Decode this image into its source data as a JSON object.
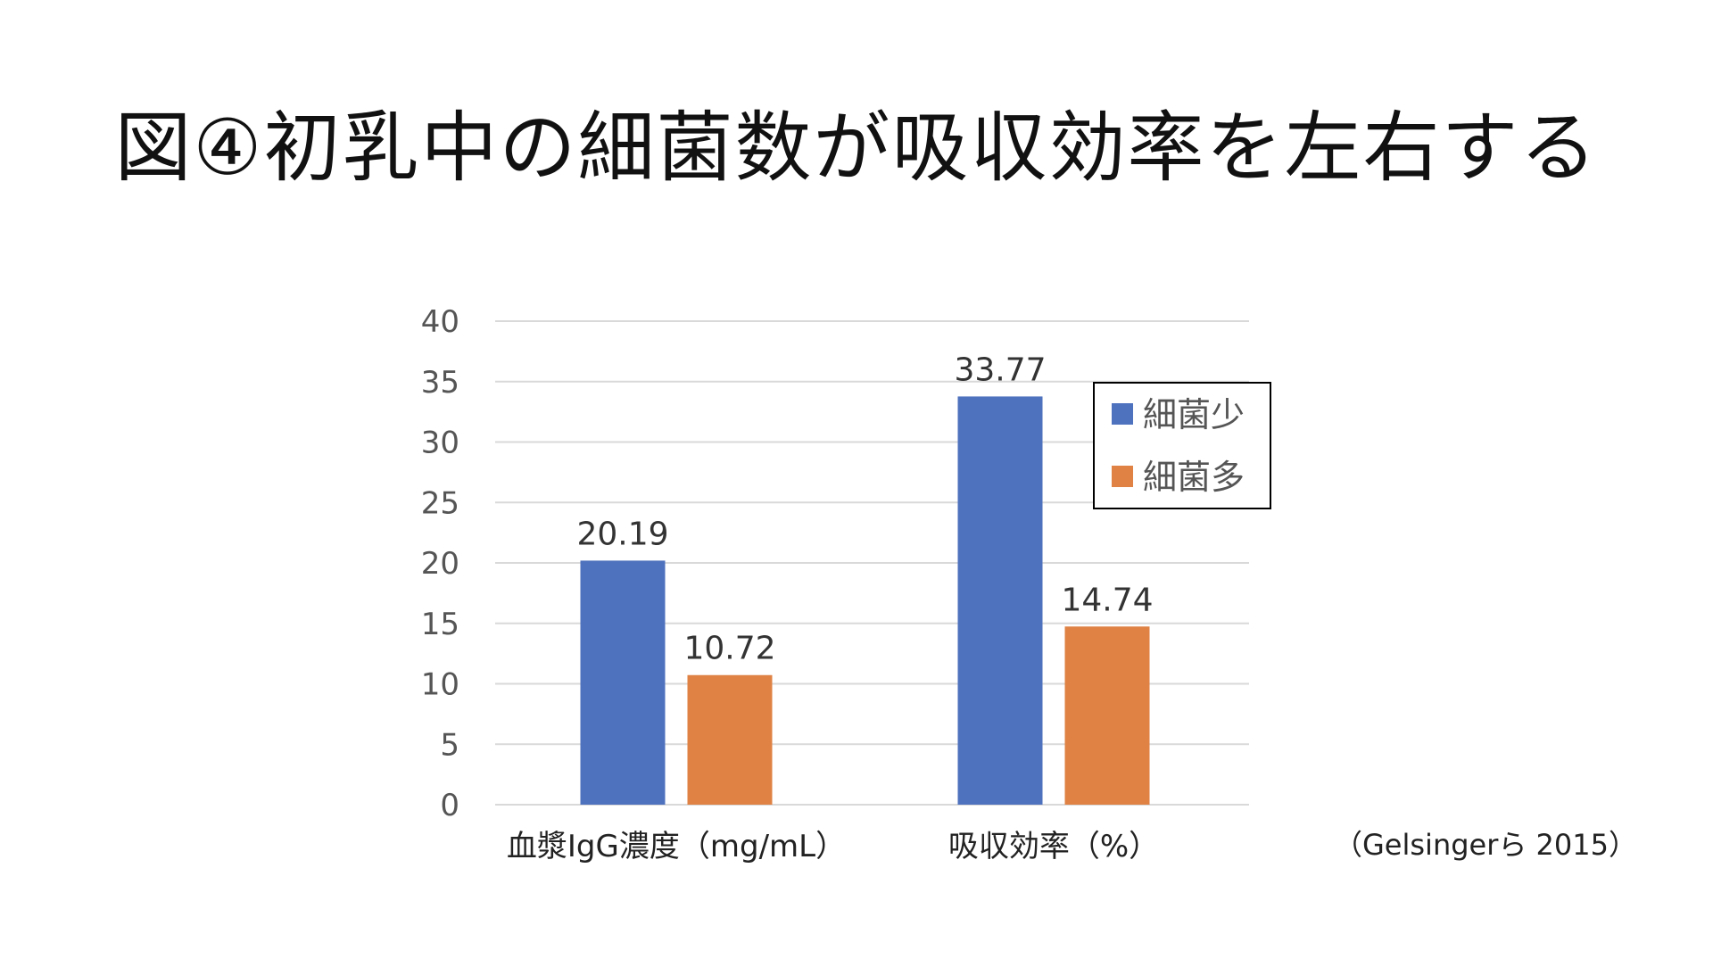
{
  "slide": {
    "title": "図④初乳中の細菌数が吸収効率を左右する",
    "citation": "（Gelsingerら 2015）"
  },
  "colors": {
    "series_low": "#4F72BE",
    "series_high": "#DF8244",
    "gridline": "#d9d9d9",
    "axis_text": "#555555"
  },
  "chart_data": {
    "type": "bar",
    "categories": [
      "血漿IgG濃度（mg/mL）",
      "吸収効率（%）"
    ],
    "series": [
      {
        "name": "細菌少",
        "values": [
          20.19,
          33.77
        ]
      },
      {
        "name": "細菌多",
        "values": [
          10.72,
          14.74
        ]
      }
    ],
    "ylim": [
      0,
      40
    ],
    "yticks": [
      0,
      5,
      10,
      15,
      20,
      25,
      30,
      35,
      40
    ],
    "data_labels": [
      "20.19",
      "10.72",
      "33.77",
      "14.74"
    ],
    "grid": true,
    "legend": "top-right"
  }
}
